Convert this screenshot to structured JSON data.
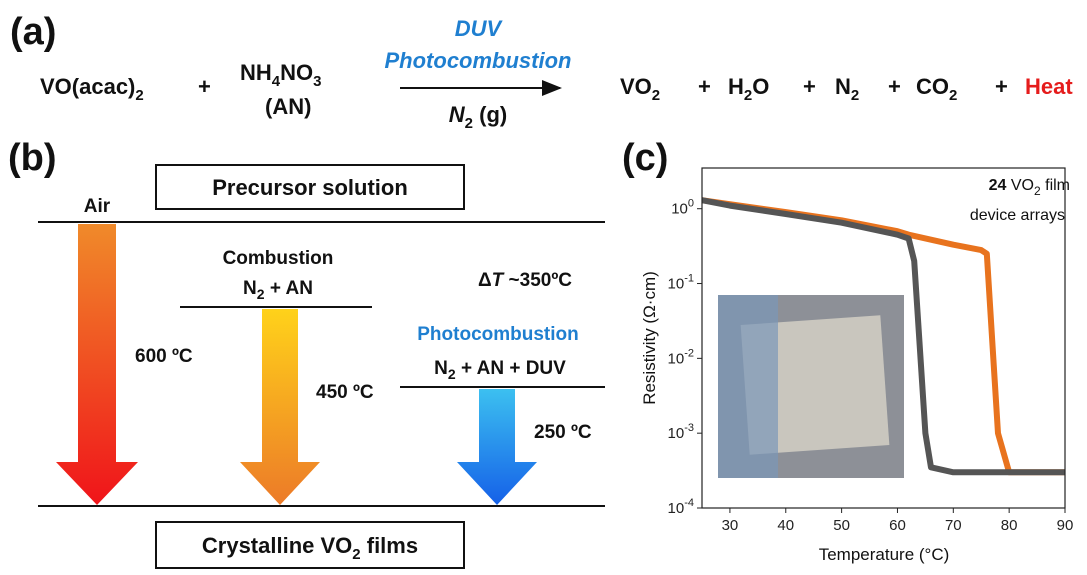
{
  "panel_a": {
    "label": "(a)",
    "reactant1": "VO(acac)",
    "reactant1_sub": "2",
    "plus": "+",
    "reactant2_a": "NH",
    "reactant2_sub1": "4",
    "reactant2_b": "NO",
    "reactant2_sub2": "3",
    "reactant2_note": "(AN)",
    "arrow_top1": "DUV",
    "arrow_top2": "Photocombustion",
    "arrow_bottom": "N",
    "arrow_bottom_sub": "2",
    "arrow_bottom_rest": " (g)",
    "product1": "VO",
    "product1_sub": "2",
    "product2_a": "H",
    "product2_sub": "2",
    "product2_b": "O",
    "product3": "N",
    "product3_sub": "2",
    "product4": "CO",
    "product4_sub": "2",
    "product5": "Heat"
  },
  "panel_b": {
    "label": "(b)",
    "top_box": "Precursor solution",
    "bottom_box": "Crystalline VO",
    "bottom_box_sub": "2",
    "bottom_box_rest": " films",
    "air": "Air",
    "air_temp": "600 ºC",
    "combustion": "Combustion",
    "combustion_gas": "N",
    "combustion_gas_sub": "2",
    "combustion_gas_rest": " + AN",
    "combustion_temp": "450 ºC",
    "delta_a": "Δ",
    "delta_t": "T",
    "delta_rest": " ~350ºC",
    "photo": "Photocombustion",
    "photo_gas": "N",
    "photo_gas_sub": "2",
    "photo_gas_rest": " + AN + DUV",
    "photo_temp": "250 ºC"
  },
  "panel_c": {
    "label": "(c)"
  },
  "chart_data": {
    "type": "line",
    "xlabel": "Temperature (°C)",
    "ylabel": "Resistivity (Ω·cm)",
    "annotation_bold": "24",
    "annotation_a": " VO",
    "annotation_sub": "2",
    "annotation_b": " film",
    "annotation_c": "device arrays",
    "xlim": [
      25,
      90
    ],
    "xticks": [
      30,
      40,
      50,
      60,
      70,
      80,
      90
    ],
    "ylim": [
      0.0001,
      3.5
    ],
    "ylog": true,
    "yticks": [
      {
        "value": 0.0001,
        "label": "10",
        "sup": "-4"
      },
      {
        "value": 0.001,
        "label": "10",
        "sup": "-3"
      },
      {
        "value": 0.01,
        "label": "10",
        "sup": "-2"
      },
      {
        "value": 0.1,
        "label": "10",
        "sup": "-1"
      },
      {
        "value": 1,
        "label": "10",
        "sup": "0"
      }
    ],
    "series": [
      {
        "color": "#e8731e",
        "x": [
          25,
          30,
          40,
          50,
          60,
          62,
          70,
          75,
          76,
          78,
          80,
          85,
          90
        ],
        "values": [
          1.3,
          1.15,
          0.9,
          0.7,
          0.5,
          0.45,
          0.33,
          0.28,
          0.25,
          0.001,
          0.0003,
          0.0003,
          0.0003
        ]
      },
      {
        "color": "#555555",
        "x": [
          90,
          80,
          70,
          66,
          65,
          63,
          62,
          60,
          50,
          40,
          30,
          25
        ],
        "values": [
          0.0003,
          0.0003,
          0.0003,
          0.00035,
          0.001,
          0.2,
          0.4,
          0.45,
          0.65,
          0.85,
          1.1,
          1.3
        ]
      }
    ]
  }
}
